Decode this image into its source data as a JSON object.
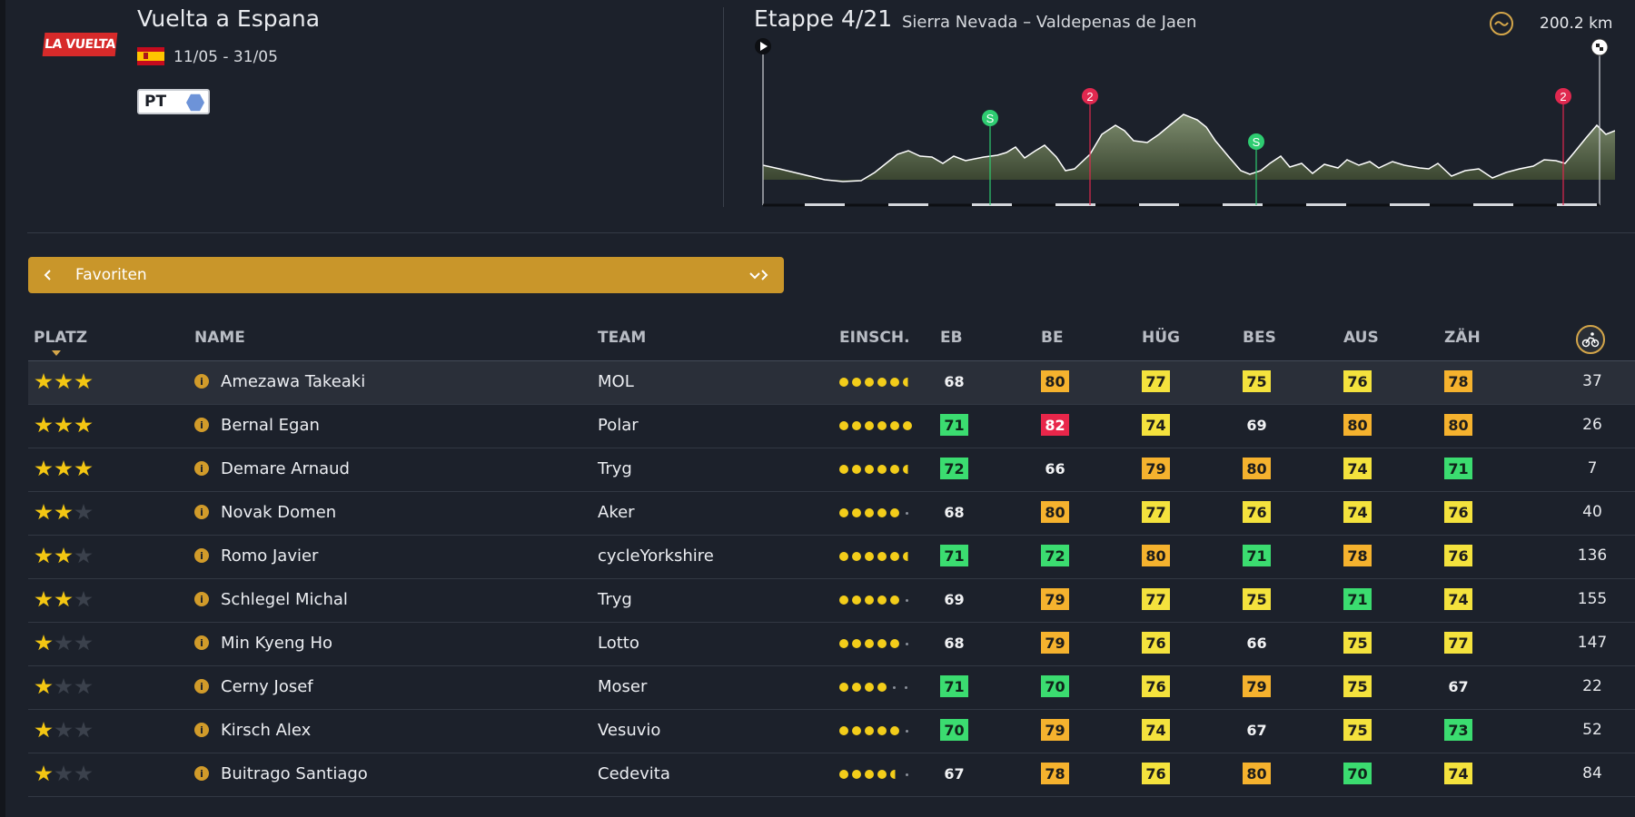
{
  "race": {
    "logo_text": "LA VUELTA",
    "title": "Vuelta a Espana",
    "flag": "spain-flag",
    "dates": "11/05 - 31/05",
    "tier": "PT"
  },
  "stage": {
    "title": "Etappe 4/21",
    "route": "Sierra Nevada – Valdepenas de Jaen",
    "distance": "200.2 km",
    "markers": [
      {
        "label": "S",
        "color": "#2ecc71"
      },
      {
        "label": "2",
        "color": "#e0284f"
      },
      {
        "label": "S",
        "color": "#2ecc71"
      },
      {
        "label": "2",
        "color": "#e0284f"
      }
    ]
  },
  "filter": {
    "label": "Favoriten"
  },
  "table": {
    "headers": {
      "platz": "PLATZ",
      "name": "NAME",
      "team": "TEAM",
      "einsch": "EINSCH.",
      "eb": "EB",
      "be": "BE",
      "hug": "HÜG",
      "bes": "BES",
      "aus": "AUS",
      "zah": "ZÄH"
    },
    "colors": {
      "green": "#3bdc70",
      "red": "#e8264a",
      "yellow": "#f4e23d",
      "orange": "#f5b22e"
    },
    "rows": [
      {
        "stars": 3,
        "name": "Amezawa Takeaki",
        "team": "MOL",
        "form": "5.5",
        "eb": {
          "v": "68",
          "c": "plain"
        },
        "be": {
          "v": "80",
          "c": "orange"
        },
        "hug": {
          "v": "77",
          "c": "yellow"
        },
        "bes": {
          "v": "75",
          "c": "yellow"
        },
        "aus": {
          "v": "76",
          "c": "yellow"
        },
        "zah": {
          "v": "78",
          "c": "orange"
        },
        "pts": "37"
      },
      {
        "stars": 3,
        "name": "Bernal Egan",
        "team": "Polar",
        "form": "6",
        "eb": {
          "v": "71",
          "c": "green"
        },
        "be": {
          "v": "82",
          "c": "red"
        },
        "hug": {
          "v": "74",
          "c": "yellow"
        },
        "bes": {
          "v": "69",
          "c": "plain"
        },
        "aus": {
          "v": "80",
          "c": "orange"
        },
        "zah": {
          "v": "80",
          "c": "orange"
        },
        "pts": "26"
      },
      {
        "stars": 3,
        "name": "Demare Arnaud",
        "team": "Tryg",
        "form": "5.5",
        "eb": {
          "v": "72",
          "c": "green"
        },
        "be": {
          "v": "66",
          "c": "plain"
        },
        "hug": {
          "v": "79",
          "c": "orange"
        },
        "bes": {
          "v": "80",
          "c": "orange"
        },
        "aus": {
          "v": "74",
          "c": "yellow"
        },
        "zah": {
          "v": "71",
          "c": "green"
        },
        "pts": "7"
      },
      {
        "stars": 2,
        "name": "Novak Domen",
        "team": "Aker",
        "form": "5",
        "eb": {
          "v": "68",
          "c": "plain"
        },
        "be": {
          "v": "80",
          "c": "orange"
        },
        "hug": {
          "v": "77",
          "c": "yellow"
        },
        "bes": {
          "v": "76",
          "c": "yellow"
        },
        "aus": {
          "v": "74",
          "c": "yellow"
        },
        "zah": {
          "v": "76",
          "c": "yellow"
        },
        "pts": "40"
      },
      {
        "stars": 2,
        "name": "Romo Javier",
        "team": "cycleYorkshire",
        "form": "5.5",
        "eb": {
          "v": "71",
          "c": "green"
        },
        "be": {
          "v": "72",
          "c": "green"
        },
        "hug": {
          "v": "80",
          "c": "orange"
        },
        "bes": {
          "v": "71",
          "c": "green"
        },
        "aus": {
          "v": "78",
          "c": "orange"
        },
        "zah": {
          "v": "76",
          "c": "yellow"
        },
        "pts": "136"
      },
      {
        "stars": 2,
        "name": "Schlegel Michal",
        "team": "Tryg",
        "form": "5",
        "eb": {
          "v": "69",
          "c": "plain"
        },
        "be": {
          "v": "79",
          "c": "orange"
        },
        "hug": {
          "v": "77",
          "c": "yellow"
        },
        "bes": {
          "v": "75",
          "c": "yellow"
        },
        "aus": {
          "v": "71",
          "c": "green"
        },
        "zah": {
          "v": "74",
          "c": "yellow"
        },
        "pts": "155"
      },
      {
        "stars": 1,
        "name": "Min Kyeng Ho",
        "team": "Lotto",
        "form": "5",
        "eb": {
          "v": "68",
          "c": "plain"
        },
        "be": {
          "v": "79",
          "c": "orange"
        },
        "hug": {
          "v": "76",
          "c": "yellow"
        },
        "bes": {
          "v": "66",
          "c": "plain"
        },
        "aus": {
          "v": "75",
          "c": "yellow"
        },
        "zah": {
          "v": "77",
          "c": "yellow"
        },
        "pts": "147"
      },
      {
        "stars": 1,
        "name": "Cerny Josef",
        "team": "Moser",
        "form": "4",
        "eb": {
          "v": "71",
          "c": "green"
        },
        "be": {
          "v": "70",
          "c": "green"
        },
        "hug": {
          "v": "76",
          "c": "yellow"
        },
        "bes": {
          "v": "79",
          "c": "orange"
        },
        "aus": {
          "v": "75",
          "c": "yellow"
        },
        "zah": {
          "v": "67",
          "c": "plain"
        },
        "pts": "22"
      },
      {
        "stars": 1,
        "name": "Kirsch Alex",
        "team": "Vesuvio",
        "form": "5",
        "eb": {
          "v": "70",
          "c": "green"
        },
        "be": {
          "v": "79",
          "c": "orange"
        },
        "hug": {
          "v": "74",
          "c": "yellow"
        },
        "bes": {
          "v": "67",
          "c": "plain"
        },
        "aus": {
          "v": "75",
          "c": "yellow"
        },
        "zah": {
          "v": "73",
          "c": "green"
        },
        "pts": "52"
      },
      {
        "stars": 1,
        "name": "Buitrago Santiago",
        "team": "Cedevita",
        "form": "4.5",
        "eb": {
          "v": "67",
          "c": "plain"
        },
        "be": {
          "v": "78",
          "c": "orange"
        },
        "hug": {
          "v": "76",
          "c": "yellow"
        },
        "bes": {
          "v": "80",
          "c": "orange"
        },
        "aus": {
          "v": "70",
          "c": "green"
        },
        "zah": {
          "v": "74",
          "c": "yellow"
        },
        "pts": "84"
      }
    ]
  }
}
